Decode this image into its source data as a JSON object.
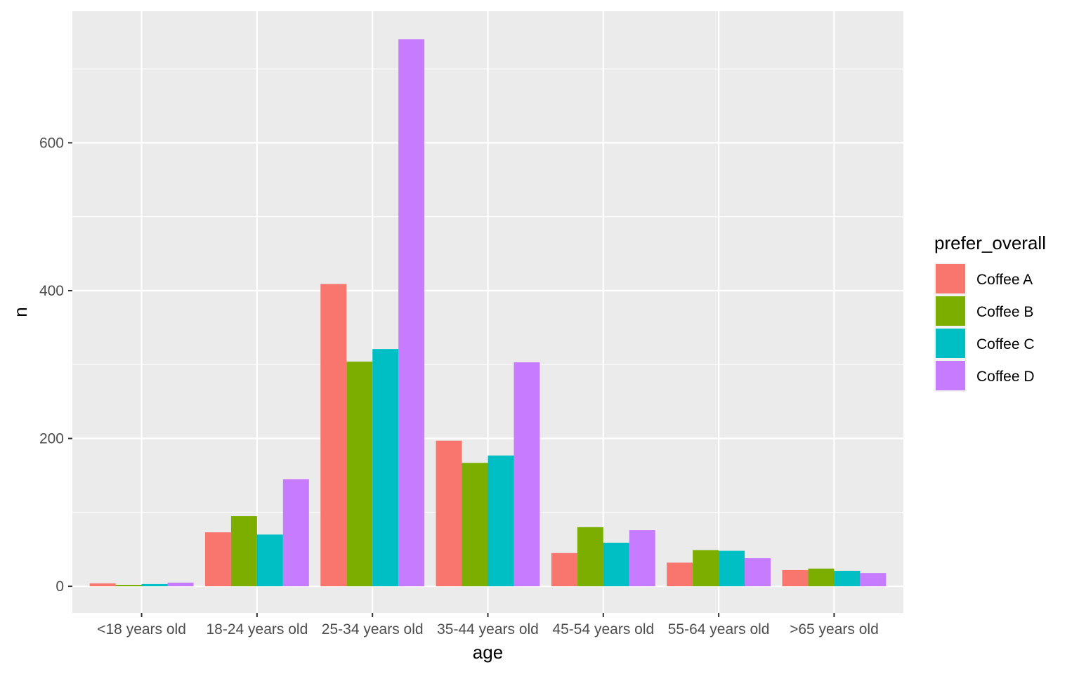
{
  "chart_data": {
    "type": "bar",
    "xlabel": "age",
    "ylabel": "n",
    "categories": [
      "<18 years old",
      "18-24 years old",
      "25-34 years old",
      "35-44 years old",
      "45-54 years old",
      "55-64 years old",
      ">65 years old"
    ],
    "series": [
      {
        "name": "Coffee A",
        "color": "#F8766D",
        "values": [
          4,
          73,
          409,
          197,
          45,
          32,
          22
        ]
      },
      {
        "name": "Coffee B",
        "color": "#7CAE00",
        "values": [
          2,
          95,
          304,
          167,
          80,
          49,
          24
        ]
      },
      {
        "name": "Coffee C",
        "color": "#00BFC4",
        "values": [
          3,
          70,
          321,
          177,
          59,
          48,
          21
        ]
      },
      {
        "name": "Coffee D",
        "color": "#C77CFF",
        "values": [
          5,
          145,
          740,
          303,
          76,
          38,
          18
        ]
      }
    ],
    "ylim": [
      -36,
      778
    ],
    "yticks": [
      0,
      200,
      400,
      600
    ],
    "ytick_labels": [
      "0",
      "200",
      "400",
      "600"
    ],
    "grid": true,
    "legend": {
      "title": "prefer_overall",
      "position": "right"
    },
    "panel_background": "#EBEBEB",
    "grid_color": "#FFFFFF"
  }
}
